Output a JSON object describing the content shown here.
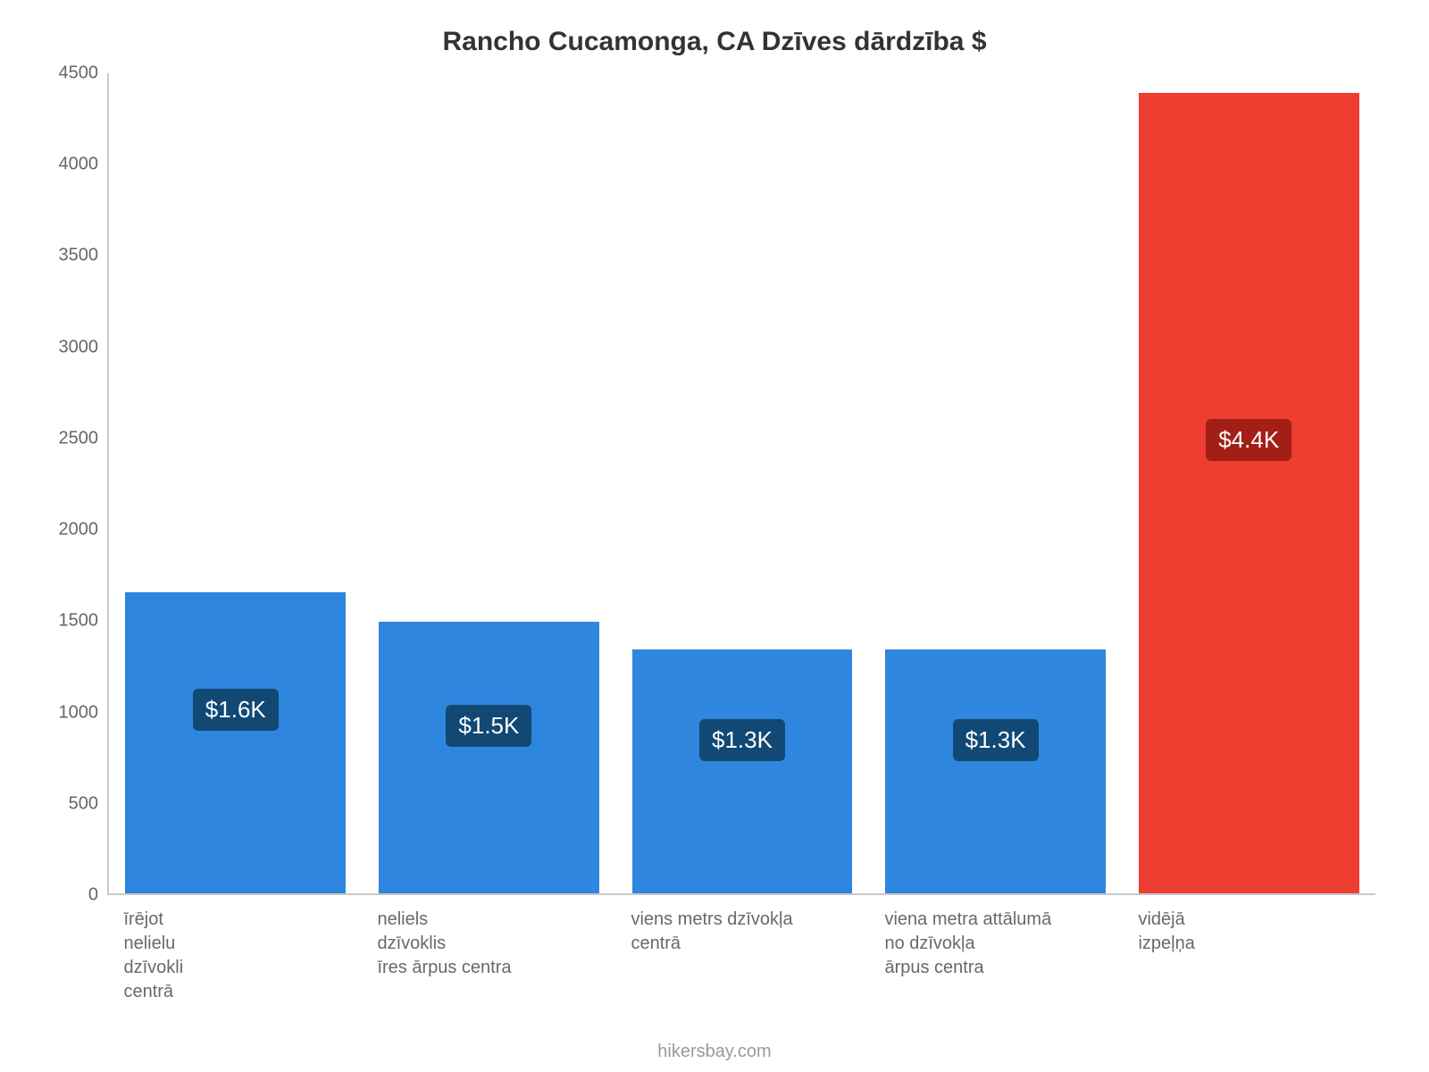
{
  "chart": {
    "type": "bar",
    "title": "Rancho Cucamonga, CA Dzīves dārdzība $",
    "title_fontsize": 30,
    "title_color": "#333333",
    "background_color": "#ffffff",
    "axis_color": "#c9c9c9",
    "y": {
      "min": 0,
      "max": 4500,
      "tick_step": 500,
      "ticks": [
        "0",
        "500",
        "1000",
        "1500",
        "2000",
        "2500",
        "3000",
        "3500",
        "4000",
        "4500"
      ],
      "tick_color": "#666666",
      "tick_fontsize": 20
    },
    "bars": {
      "bar_width_fraction": 0.87,
      "gap_fraction": 0.13,
      "items": [
        {
          "category": "īrējot\nnelielu\ndzīvokli\ncentrā",
          "value": 1650,
          "value_label": "$1.6K",
          "bar_color": "#2e86de",
          "badge_bg": "#114874",
          "badge_text_color": "#ffffff"
        },
        {
          "category": "neliels\ndzīvoklis\nīres ārpus centra",
          "value": 1490,
          "value_label": "$1.5K",
          "bar_color": "#2e86de",
          "badge_bg": "#114874",
          "badge_text_color": "#ffffff"
        },
        {
          "category": "viens metrs dzīvokļa\ncentrā",
          "value": 1340,
          "value_label": "$1.3K",
          "bar_color": "#2e86de",
          "badge_bg": "#114874",
          "badge_text_color": "#ffffff"
        },
        {
          "category": "viena metra attālumā\nno dzīvokļa\nārpus centra",
          "value": 1340,
          "value_label": "$1.3K",
          "bar_color": "#2e86de",
          "badge_bg": "#114874",
          "badge_text_color": "#ffffff"
        },
        {
          "category": "vidējā\nizpeļņa",
          "value": 4390,
          "value_label": "$4.4K",
          "bar_color": "#ee3e32",
          "badge_bg": "#a11f16",
          "badge_text_color": "#ffffff"
        }
      ]
    },
    "x_label_color": "#696969",
    "x_label_fontsize": 20,
    "value_label_fontsize": 26,
    "attribution": "hikersbay.com",
    "attribution_color": "#9a9a9a",
    "attribution_fontsize": 20
  }
}
